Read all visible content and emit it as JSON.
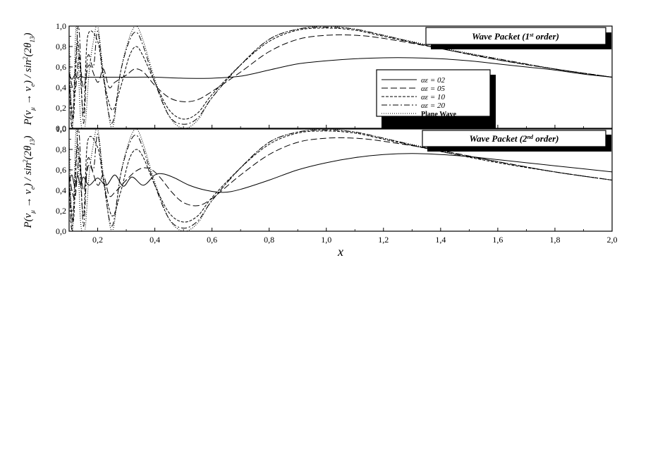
{
  "figure": {
    "xlabel": "x",
    "ylabel_panel1": "P(ν_μ → ν_e) / sin²(2θ_13)",
    "ylabel_panel2": "P(ν_μ → ν_e) / sin²(2θ_13)"
  },
  "legend": {
    "entries": [
      {
        "label": "αε = 02",
        "dash": "none"
      },
      {
        "label": "αε = 05",
        "dash": "9,4"
      },
      {
        "label": "αε = 10",
        "dash": "4,2"
      },
      {
        "label": "αε = 20",
        "dash": "8,3,2,3"
      },
      {
        "label": "Plane Wave",
        "dash": "1,2"
      }
    ]
  },
  "chart_data": [
    {
      "type": "line",
      "title": "Wave Packet (1st order)",
      "title_parts": {
        "main": "Wave Packet (1",
        "sup": "st",
        "end": " order)"
      },
      "xlabel": "x",
      "ylabel": "P(ν_μ → ν_e) / sin²(2θ_13)",
      "xlim": [
        0.1,
        2.0
      ],
      "ylim": [
        0.0,
        1.0
      ],
      "xticks": [
        0.2,
        0.4,
        0.6,
        0.8,
        1.0,
        1.2,
        1.4,
        1.6,
        1.8,
        2.0
      ],
      "xtick_labels": [
        "0,2",
        "0,4",
        "0,6",
        "0,8",
        "1,0",
        "1,2",
        "1,4",
        "1,6",
        "1,8",
        "2,0"
      ],
      "yticks": [
        0.0,
        0.2,
        0.4,
        0.6,
        0.8,
        1.0
      ],
      "ytick_labels": [
        "0,0",
        "0,2",
        "0,4",
        "0,6",
        "0,8",
        "1,0"
      ],
      "grid": false,
      "legend_position": "center-right",
      "series": [
        {
          "name": "αε = 02",
          "x": [
            0.1,
            0.11,
            0.12,
            0.13,
            0.14,
            0.15,
            0.17,
            0.2,
            0.25,
            0.3,
            0.4,
            0.5,
            0.6,
            0.7,
            0.8,
            0.9,
            1.0,
            1.1,
            1.2,
            1.3,
            1.4,
            1.5,
            1.6,
            1.7,
            1.8,
            1.9,
            2.0
          ],
          "y": [
            0.52,
            0.48,
            0.52,
            0.49,
            0.51,
            0.5,
            0.5,
            0.5,
            0.5,
            0.5,
            0.5,
            0.49,
            0.49,
            0.51,
            0.57,
            0.63,
            0.66,
            0.68,
            0.69,
            0.69,
            0.68,
            0.66,
            0.63,
            0.6,
            0.57,
            0.53,
            0.5
          ]
        },
        {
          "name": "αε = 05",
          "x": [
            0.1,
            0.12,
            0.135,
            0.15,
            0.17,
            0.2,
            0.22,
            0.24,
            0.26,
            0.3,
            0.33,
            0.36,
            0.4,
            0.45,
            0.5,
            0.55,
            0.6,
            0.7,
            0.8,
            0.9,
            1.0,
            1.1,
            1.2,
            1.4,
            1.6,
            1.8,
            2.0
          ],
          "y": [
            0.55,
            0.35,
            0.7,
            0.4,
            0.62,
            0.45,
            0.58,
            0.4,
            0.45,
            0.52,
            0.58,
            0.55,
            0.42,
            0.3,
            0.26,
            0.28,
            0.36,
            0.55,
            0.75,
            0.87,
            0.91,
            0.91,
            0.88,
            0.78,
            0.67,
            0.58,
            0.5
          ]
        },
        {
          "name": "αε = 10",
          "x": [
            0.1,
            0.115,
            0.13,
            0.15,
            0.165,
            0.2,
            0.22,
            0.25,
            0.28,
            0.31,
            0.335,
            0.36,
            0.4,
            0.45,
            0.5,
            0.55,
            0.6,
            0.7,
            0.8,
            0.9,
            1.0,
            1.1,
            1.2,
            1.4,
            1.6,
            1.8,
            2.0
          ],
          "y": [
            0.5,
            0.1,
            0.85,
            0.15,
            0.9,
            0.85,
            0.5,
            0.18,
            0.4,
            0.7,
            0.8,
            0.7,
            0.45,
            0.18,
            0.09,
            0.15,
            0.33,
            0.62,
            0.85,
            0.96,
            0.98,
            0.96,
            0.9,
            0.78,
            0.67,
            0.58,
            0.5
          ]
        },
        {
          "name": "αε = 20",
          "x": [
            0.1,
            0.11,
            0.125,
            0.135,
            0.15,
            0.165,
            0.185,
            0.2,
            0.22,
            0.25,
            0.28,
            0.31,
            0.335,
            0.36,
            0.4,
            0.45,
            0.5,
            0.55,
            0.6,
            0.7,
            0.8,
            0.9,
            1.0,
            1.1,
            1.2,
            1.4,
            1.6,
            1.8,
            2.0
          ],
          "y": [
            0.5,
            0.02,
            0.75,
            0.97,
            0.05,
            0.7,
            0.6,
            0.95,
            0.5,
            0.05,
            0.55,
            0.85,
            0.94,
            0.8,
            0.45,
            0.12,
            0.04,
            0.1,
            0.3,
            0.62,
            0.87,
            0.97,
            0.99,
            0.97,
            0.91,
            0.78,
            0.68,
            0.58,
            0.5
          ]
        },
        {
          "name": "Plane Wave",
          "x": [
            0.1,
            0.112,
            0.125,
            0.14,
            0.155,
            0.17,
            0.185,
            0.2,
            0.22,
            0.25,
            0.28,
            0.31,
            0.335,
            0.36,
            0.4,
            0.45,
            0.5,
            0.55,
            0.6,
            0.7,
            0.8,
            0.9,
            1.0,
            1.1,
            1.2,
            1.4,
            1.6,
            1.8,
            2.0
          ],
          "y": [
            0.9,
            0.0,
            1.0,
            0.1,
            0.0,
            0.55,
            0.85,
            1.0,
            0.55,
            0.0,
            0.55,
            0.88,
            1.0,
            0.85,
            0.48,
            0.12,
            0.0,
            0.08,
            0.3,
            0.62,
            0.87,
            0.97,
            1.0,
            0.97,
            0.91,
            0.79,
            0.68,
            0.58,
            0.5
          ]
        }
      ]
    },
    {
      "type": "line",
      "title": "Wave Packet (2nd order)",
      "title_parts": {
        "main": "Wave Packet (2",
        "sup": "nd",
        "end": " order)"
      },
      "xlabel": "x",
      "ylabel": "P(ν_μ → ν_e) / sin²(2θ_13)",
      "xlim": [
        0.1,
        2.0
      ],
      "ylim": [
        0.0,
        1.0
      ],
      "xticks": [
        0.2,
        0.4,
        0.6,
        0.8,
        1.0,
        1.2,
        1.4,
        1.6,
        1.8,
        2.0
      ],
      "xtick_labels": [
        "0,2",
        "0,4",
        "0,6",
        "0,8",
        "1,0",
        "1,2",
        "1,4",
        "1,6",
        "1,8",
        "2,0"
      ],
      "yticks": [
        0.0,
        0.2,
        0.4,
        0.6,
        0.8,
        1.0
      ],
      "ytick_labels": [
        "0,0",
        "0,2",
        "0,4",
        "0,6",
        "0,8",
        "1,0"
      ],
      "grid": false,
      "series": [
        {
          "name": "αε = 02",
          "x": [
            0.1,
            0.11,
            0.12,
            0.13,
            0.14,
            0.15,
            0.17,
            0.2,
            0.23,
            0.26,
            0.29,
            0.32,
            0.36,
            0.4,
            0.43,
            0.47,
            0.52,
            0.58,
            0.64,
            0.7,
            0.8,
            0.9,
            1.0,
            1.1,
            1.2,
            1.3,
            1.4,
            1.5,
            1.6,
            1.7,
            1.8,
            1.9,
            2.0
          ],
          "y": [
            0.48,
            0.55,
            0.44,
            0.54,
            0.45,
            0.53,
            0.45,
            0.52,
            0.45,
            0.55,
            0.44,
            0.53,
            0.45,
            0.55,
            0.56,
            0.52,
            0.45,
            0.4,
            0.38,
            0.41,
            0.5,
            0.6,
            0.67,
            0.72,
            0.75,
            0.76,
            0.75,
            0.73,
            0.7,
            0.67,
            0.64,
            0.61,
            0.58
          ]
        },
        {
          "name": "αε = 05",
          "x": [
            0.1,
            0.12,
            0.135,
            0.15,
            0.17,
            0.2,
            0.22,
            0.24,
            0.26,
            0.3,
            0.33,
            0.36,
            0.39,
            0.42,
            0.46,
            0.5,
            0.55,
            0.6,
            0.7,
            0.8,
            0.9,
            1.0,
            1.1,
            1.2,
            1.4,
            1.6,
            1.8,
            2.0
          ],
          "y": [
            0.55,
            0.32,
            0.72,
            0.4,
            0.65,
            0.45,
            0.55,
            0.35,
            0.38,
            0.5,
            0.58,
            0.62,
            0.6,
            0.52,
            0.38,
            0.28,
            0.25,
            0.32,
            0.55,
            0.75,
            0.87,
            0.91,
            0.91,
            0.88,
            0.79,
            0.68,
            0.58,
            0.5
          ]
        },
        {
          "name": "αε = 10",
          "x": [
            0.1,
            0.115,
            0.13,
            0.15,
            0.165,
            0.2,
            0.22,
            0.25,
            0.28,
            0.31,
            0.335,
            0.36,
            0.4,
            0.45,
            0.5,
            0.55,
            0.6,
            0.7,
            0.8,
            0.9,
            1.0,
            1.1,
            1.2,
            1.4,
            1.6,
            1.8,
            2.0
          ],
          "y": [
            0.5,
            0.1,
            0.85,
            0.15,
            0.88,
            0.82,
            0.5,
            0.15,
            0.38,
            0.7,
            0.8,
            0.72,
            0.45,
            0.18,
            0.09,
            0.15,
            0.33,
            0.62,
            0.85,
            0.96,
            0.98,
            0.96,
            0.9,
            0.78,
            0.67,
            0.58,
            0.5
          ]
        },
        {
          "name": "αε = 20",
          "x": [
            0.1,
            0.11,
            0.125,
            0.135,
            0.15,
            0.165,
            0.185,
            0.2,
            0.22,
            0.25,
            0.28,
            0.31,
            0.335,
            0.36,
            0.4,
            0.45,
            0.5,
            0.55,
            0.6,
            0.7,
            0.8,
            0.9,
            1.0,
            1.1,
            1.2,
            1.4,
            1.6,
            1.8,
            2.0
          ],
          "y": [
            0.5,
            0.02,
            0.75,
            0.97,
            0.05,
            0.7,
            0.6,
            0.95,
            0.5,
            0.05,
            0.55,
            0.85,
            0.94,
            0.8,
            0.45,
            0.12,
            0.03,
            0.1,
            0.3,
            0.62,
            0.87,
            0.97,
            0.99,
            0.97,
            0.91,
            0.78,
            0.68,
            0.58,
            0.5
          ]
        },
        {
          "name": "Plane Wave",
          "x": [
            0.1,
            0.112,
            0.125,
            0.14,
            0.155,
            0.17,
            0.185,
            0.2,
            0.22,
            0.25,
            0.28,
            0.31,
            0.335,
            0.36,
            0.4,
            0.45,
            0.5,
            0.55,
            0.6,
            0.7,
            0.8,
            0.9,
            1.0,
            1.1,
            1.2,
            1.4,
            1.6,
            1.8,
            2.0
          ],
          "y": [
            0.9,
            0.0,
            1.0,
            0.1,
            0.0,
            0.55,
            0.85,
            1.0,
            0.55,
            0.0,
            0.55,
            0.88,
            1.0,
            0.85,
            0.48,
            0.12,
            0.0,
            0.08,
            0.3,
            0.62,
            0.87,
            0.97,
            1.0,
            0.97,
            0.91,
            0.79,
            0.68,
            0.58,
            0.5
          ]
        }
      ]
    }
  ]
}
